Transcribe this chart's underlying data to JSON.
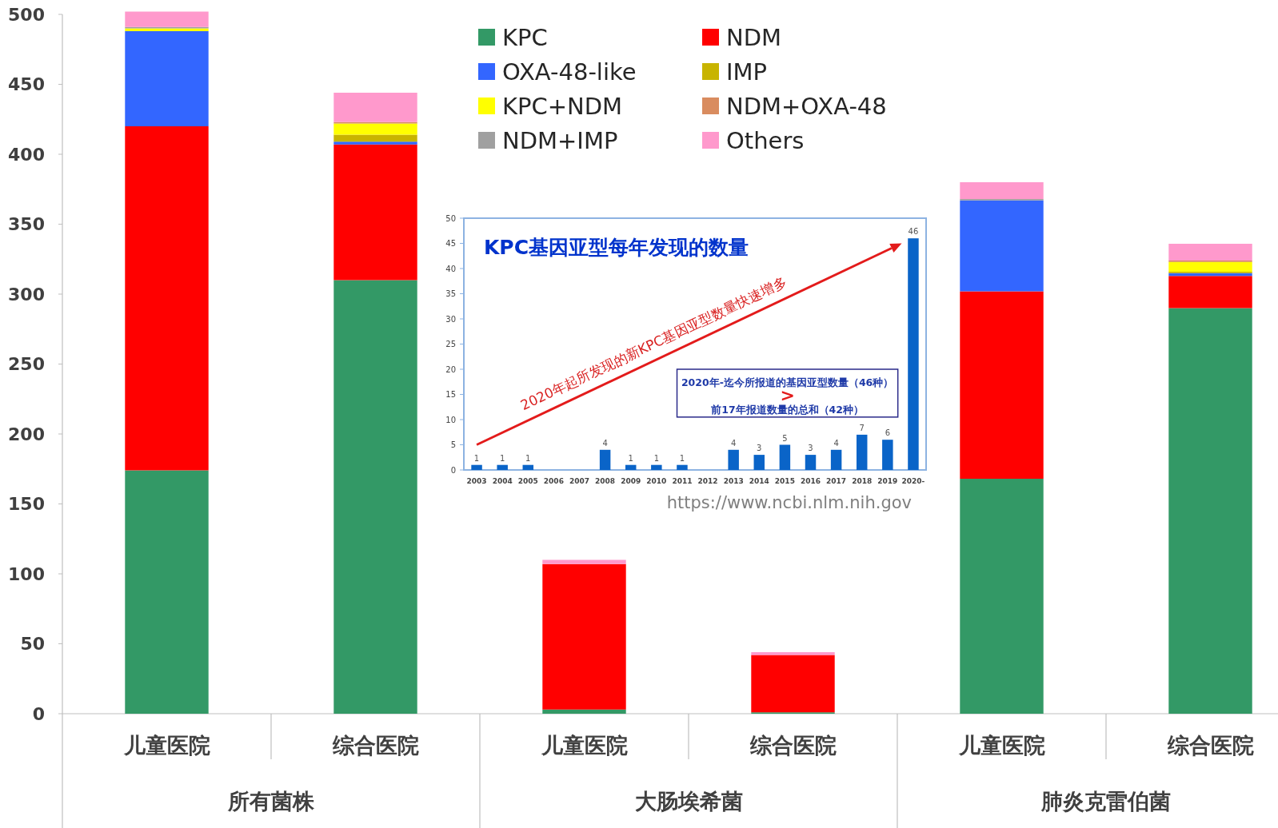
{
  "chart_data": [
    {
      "type": "bar",
      "stacked": true,
      "legend": "top",
      "categories": [
        "儿童医院",
        "综合医院",
        "儿童医院",
        "综合医院",
        "儿童医院",
        "综合医院"
      ],
      "annotations": [
        "所有菌株",
        "大肠埃希菌",
        "肺炎克雷伯菌"
      ],
      "ylim": [
        0,
        500
      ],
      "yticks": [
        0,
        50,
        100,
        150,
        200,
        250,
        300,
        350,
        400,
        450,
        500
      ],
      "series": [
        {
          "name": "KPC",
          "color": "#339966",
          "values": [
            174,
            310,
            3,
            1,
            168,
            290
          ]
        },
        {
          "name": "NDM",
          "color": "#ff0000",
          "values": [
            246,
            97,
            104,
            41,
            134,
            23
          ]
        },
        {
          "name": "OXA-48-like",
          "color": "#3366ff",
          "values": [
            68,
            2,
            0,
            0,
            65,
            2
          ]
        },
        {
          "name": "IMP",
          "color": "#c8b400",
          "values": [
            0,
            5,
            0,
            0,
            0,
            1
          ]
        },
        {
          "name": "KPC+NDM",
          "color": "#ffff00",
          "values": [
            2,
            8,
            0,
            0,
            0,
            7
          ]
        },
        {
          "name": "NDM+OXA-48",
          "color": "#d98c5f",
          "values": [
            0,
            1,
            0,
            0,
            0,
            1
          ]
        },
        {
          "name": "NDM+IMP",
          "color": "#a0a0a0",
          "values": [
            1,
            0,
            0,
            0,
            1,
            0
          ]
        },
        {
          "name": "Others",
          "color": "#ff99cc",
          "values": [
            11,
            21,
            3,
            2,
            12,
            12
          ]
        }
      ]
    },
    {
      "type": "bar",
      "title": "KPC基因亚型每年发现的数量",
      "color": "#0a64c8",
      "categories": [
        "2003",
        "2004",
        "2005",
        "2006",
        "2007",
        "2008",
        "2009",
        "2010",
        "2011",
        "2012",
        "2013",
        "2014",
        "2015",
        "2016",
        "2017",
        "2018",
        "2019",
        "2020-"
      ],
      "values": [
        1,
        1,
        1,
        0,
        0,
        4,
        1,
        1,
        1,
        0,
        4,
        3,
        5,
        3,
        4,
        7,
        6,
        46
      ],
      "value_labels": [
        "1",
        "1",
        "1",
        null,
        null,
        "4",
        "1",
        "1",
        "1",
        null,
        "4",
        "3",
        "5",
        "3",
        "4",
        "7",
        "6",
        "46"
      ],
      "ylim": [
        0,
        50
      ],
      "yticks": [
        0,
        5,
        10,
        15,
        20,
        25,
        30,
        35,
        40,
        45,
        50
      ],
      "annotations": [
        "2020年起所发现的新KPC基因亚型数量快速增多",
        "2020年-迄今所报道的基因亚型数量（46种）",
        ">",
        "前17年报道数量的总和（42种）",
        "https://www.ncbi.nlm.nih.gov"
      ]
    }
  ]
}
